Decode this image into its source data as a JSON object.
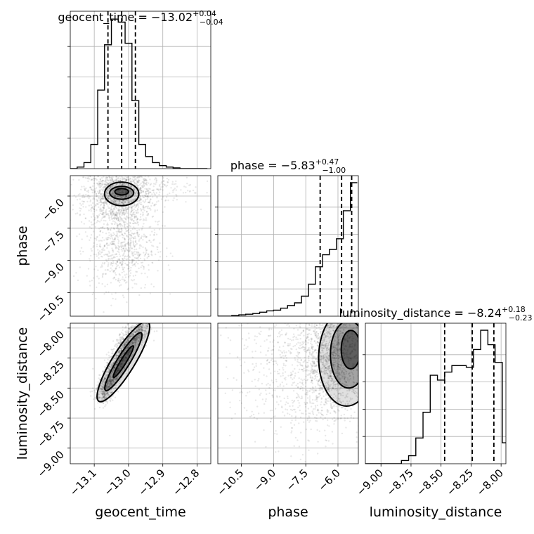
{
  "chart_data": {
    "type": "corner",
    "parameters": [
      "geocent_time",
      "phase",
      "luminosity_distance"
    ],
    "axis_labels": {
      "geocent_time": "geocent_time",
      "phase": "phase",
      "luminosity_distance": "luminosity_distance"
    },
    "titles": [
      {
        "param": "geocent_time",
        "prefix": "geocent_time = ",
        "median": "−13.02",
        "plus": "+0.04",
        "minus": "−0.04"
      },
      {
        "param": "phase",
        "prefix": "phase = ",
        "median": "−5.83",
        "plus": "+0.47",
        "minus": "−1.00"
      },
      {
        "param": "luminosity_distance",
        "prefix": "luminosity_distance = ",
        "median": "−8.24",
        "plus": "+0.18",
        "minus": "−0.23"
      }
    ],
    "ranges": {
      "geocent_time": [
        -13.17,
        -12.76
      ],
      "phase": [
        -11.6,
        -5.05
      ],
      "luminosity_distance": [
        -9.13,
        -7.96
      ]
    },
    "ticks": {
      "geocent_time": {
        "values": [
          -13.1,
          -13.0,
          -12.9,
          -12.8
        ],
        "labels": [
          "−13.1",
          "−13.0",
          "−12.9",
          "−12.8"
        ]
      },
      "phase": {
        "values": [
          -10.5,
          -9.0,
          -7.5,
          -6.0
        ],
        "labels": [
          "−10.5",
          "−9.0",
          "−7.5",
          "−6.0"
        ]
      },
      "luminosity_distance": {
        "values": [
          -9.0,
          -8.75,
          -8.5,
          -8.25,
          -8.0
        ],
        "labels": [
          "−9.00",
          "−8.75",
          "−8.50",
          "−8.25",
          "−8.00"
        ]
      }
    },
    "quantiles": {
      "geocent_time": [
        -13.06,
        -13.02,
        -12.98
      ],
      "phase": [
        -6.83,
        -5.83,
        -5.36
      ],
      "luminosity_distance": [
        -8.47,
        -8.24,
        -8.06
      ]
    },
    "histograms": {
      "geocent_time": {
        "edges": [
          -13.17,
          -13.15,
          -13.13,
          -13.11,
          -13.09,
          -13.07,
          -13.05,
          -13.03,
          -13.01,
          -12.99,
          -12.97,
          -12.95,
          -12.93,
          -12.91,
          -12.89,
          -12.87,
          -12.85,
          -12.83,
          -12.81,
          -12.79,
          -12.77
        ],
        "counts": [
          0.0,
          0.01,
          0.04,
          0.16,
          0.52,
          0.82,
          0.99,
          0.97,
          0.83,
          0.45,
          0.16,
          0.08,
          0.04,
          0.02,
          0.01,
          0.005,
          0.0,
          0.0,
          0.0,
          0.0
        ]
      },
      "phase": {
        "edges": [
          -11.6,
          -11.27,
          -10.95,
          -10.62,
          -10.3,
          -9.97,
          -9.65,
          -9.32,
          -9.0,
          -8.67,
          -8.35,
          -8.02,
          -7.7,
          -7.37,
          -7.05,
          -6.72,
          -6.4,
          -6.07,
          -5.75,
          -5.42,
          -5.1
        ],
        "counts": [
          0.0,
          0.0,
          0.005,
          0.01,
          0.015,
          0.02,
          0.03,
          0.04,
          0.045,
          0.06,
          0.08,
          0.1,
          0.15,
          0.24,
          0.37,
          0.46,
          0.5,
          0.58,
          0.79,
          1.0
        ]
      },
      "luminosity_distance": {
        "edges": [
          -9.13,
          -9.07,
          -9.01,
          -8.95,
          -8.89,
          -8.83,
          -8.77,
          -8.71,
          -8.65,
          -8.59,
          -8.53,
          -8.47,
          -8.41,
          -8.35,
          -8.29,
          -8.23,
          -8.17,
          -8.11,
          -8.05,
          -7.99,
          -7.96
        ],
        "counts": [
          0.0,
          0.0,
          0.0,
          0.0,
          0.0,
          0.02,
          0.05,
          0.16,
          0.32,
          0.55,
          0.52,
          0.57,
          0.61,
          0.61,
          0.6,
          0.71,
          0.83,
          0.74,
          0.63,
          0.13
        ]
      }
    },
    "scatter": {
      "geocent_time|phase": {
        "clusters": [
          {
            "n": 1300,
            "cx": -13.03,
            "cy": -6.0,
            "sx": 0.05,
            "sy": 0.7
          },
          {
            "n": 700,
            "cx": -13.02,
            "cy": -8.4,
            "sx": 0.05,
            "sy": 1.0
          },
          {
            "n": 250,
            "cx": -12.97,
            "cy": -5.6,
            "sx": 0.08,
            "sy": 0.4
          }
        ],
        "contours": [
          {
            "cx": -13.02,
            "cy": -5.9,
            "rx": 0.05,
            "ry": 0.55
          },
          {
            "cx": -13.02,
            "cy": -5.85,
            "rx": 0.035,
            "ry": 0.3
          },
          {
            "cx": -13.02,
            "cy": -5.8,
            "rx": 0.02,
            "ry": 0.15
          }
        ]
      },
      "geocent_time|luminosity_distance": {
        "ridge": [
          [
            -13.08,
            -8.58
          ],
          [
            -13.0,
            -8.1
          ],
          [
            -12.95,
            -7.98
          ]
        ],
        "spread_x": 0.012,
        "spread_y": 0.05,
        "n": 1800
      },
      "phase|luminosity_distance": {
        "clusters": [
          {
            "n": 1600,
            "cx": -6.3,
            "cy": -8.25,
            "sx": 0.8,
            "sy": 0.25
          },
          {
            "n": 600,
            "cx": -8.2,
            "cy": -8.3,
            "sx": 1.3,
            "sy": 0.35
          }
        ],
        "contours": [
          {
            "cx": -5.6,
            "cy": -8.25,
            "rx": 1.3,
            "ry": 0.4
          },
          {
            "cx": -5.5,
            "cy": -8.22,
            "rx": 0.85,
            "ry": 0.28
          },
          {
            "cx": -5.4,
            "cy": -8.18,
            "rx": 0.45,
            "ry": 0.16
          }
        ]
      }
    }
  }
}
